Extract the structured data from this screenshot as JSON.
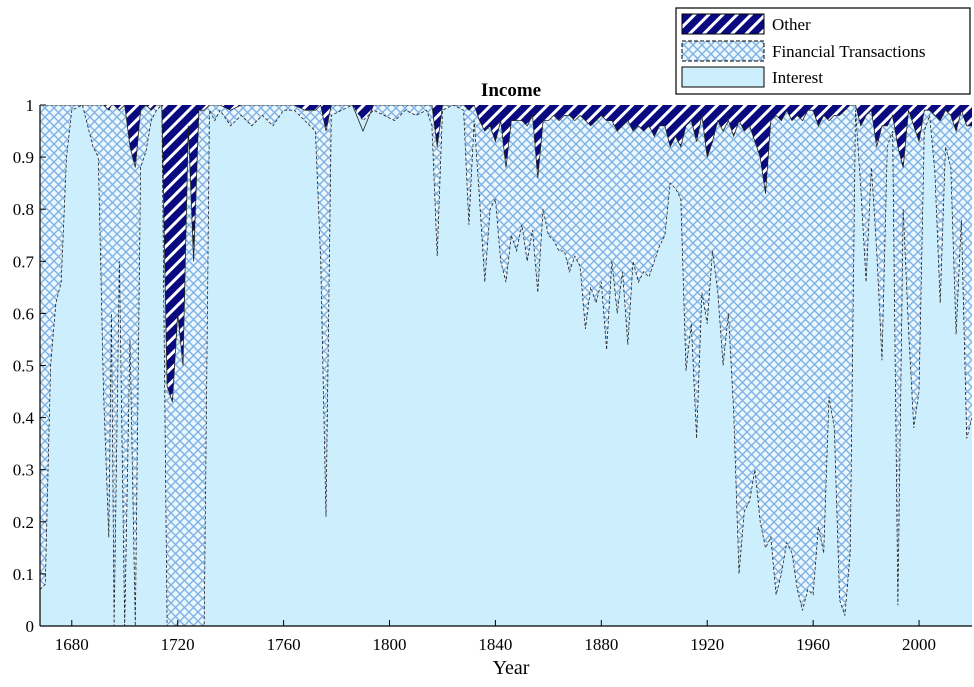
{
  "chart_data": {
    "type": "area",
    "stacked": true,
    "normalized": true,
    "title": "Income",
    "xlabel": "Year",
    "ylabel": "",
    "xlim": [
      1668,
      2020
    ],
    "ylim": [
      0,
      1
    ],
    "xticks": [
      1680,
      1720,
      1760,
      1800,
      1840,
      1880,
      1920,
      1960,
      2000
    ],
    "yticks": [
      0,
      0.1,
      0.2,
      0.3,
      0.4,
      0.5,
      0.6,
      0.7,
      0.8,
      0.9,
      1
    ],
    "ytick_labels": [
      "0",
      "0.1",
      "0.2",
      "0.3",
      "0.4",
      "0.5",
      "0.6",
      "0.7",
      "0.8",
      "0.9",
      "1"
    ],
    "xtick_labels": [
      "1680",
      "1720",
      "1760",
      "1800",
      "1840",
      "1880",
      "1920",
      "1960",
      "2000"
    ],
    "legend": {
      "position": "top-right"
    },
    "grid": false,
    "series": [
      {
        "name": "Interest",
        "pattern": "solid",
        "color": "#cdeefc"
      },
      {
        "name": "Financial Transactions",
        "pattern": "crosshatch",
        "color": "#9fc6ee"
      },
      {
        "name": "Other",
        "pattern": "diagonal-stripes",
        "color": "#0a0a80"
      }
    ],
    "interest_top": [
      [
        1668,
        0.07
      ],
      [
        1670,
        0.08
      ],
      [
        1672,
        0.5
      ],
      [
        1674,
        0.62
      ],
      [
        1676,
        0.66
      ],
      [
        1678,
        0.9
      ],
      [
        1680,
        0.99
      ],
      [
        1684,
        1.0
      ],
      [
        1688,
        0.92
      ],
      [
        1690,
        0.9
      ],
      [
        1692,
        0.45
      ],
      [
        1694,
        0.17
      ],
      [
        1695,
        0.6
      ],
      [
        1696,
        0.0
      ],
      [
        1698,
        0.7
      ],
      [
        1700,
        0.0
      ],
      [
        1702,
        0.55
      ],
      [
        1704,
        0.0
      ],
      [
        1706,
        0.88
      ],
      [
        1708,
        0.91
      ],
      [
        1710,
        0.97
      ],
      [
        1712,
        0.99
      ],
      [
        1714,
        1.0
      ],
      [
        1716,
        0.0
      ],
      [
        1718,
        0.0
      ],
      [
        1720,
        0.0
      ],
      [
        1722,
        0.0
      ],
      [
        1724,
        0.0
      ],
      [
        1726,
        0.0
      ],
      [
        1728,
        0.0
      ],
      [
        1730,
        0.0
      ],
      [
        1732,
        0.99
      ],
      [
        1734,
        0.97
      ],
      [
        1736,
        0.99
      ],
      [
        1740,
        0.96
      ],
      [
        1744,
        0.98
      ],
      [
        1748,
        0.96
      ],
      [
        1752,
        0.98
      ],
      [
        1756,
        0.96
      ],
      [
        1760,
        0.99
      ],
      [
        1764,
        0.99
      ],
      [
        1768,
        0.97
      ],
      [
        1772,
        0.95
      ],
      [
        1774,
        0.7
      ],
      [
        1776,
        0.21
      ],
      [
        1778,
        0.98
      ],
      [
        1782,
        0.99
      ],
      [
        1786,
        1.0
      ],
      [
        1790,
        0.97
      ],
      [
        1794,
        0.99
      ],
      [
        1798,
        0.98
      ],
      [
        1802,
        0.97
      ],
      [
        1806,
        0.99
      ],
      [
        1810,
        0.98
      ],
      [
        1814,
        0.99
      ],
      [
        1816,
        0.96
      ],
      [
        1818,
        0.71
      ],
      [
        1820,
        0.99
      ],
      [
        1824,
        1.0
      ],
      [
        1828,
        0.99
      ],
      [
        1830,
        0.77
      ],
      [
        1832,
        0.97
      ],
      [
        1834,
        0.82
      ],
      [
        1836,
        0.66
      ],
      [
        1838,
        0.8
      ],
      [
        1840,
        0.82
      ],
      [
        1842,
        0.7
      ],
      [
        1844,
        0.66
      ],
      [
        1846,
        0.75
      ],
      [
        1848,
        0.72
      ],
      [
        1850,
        0.77
      ],
      [
        1852,
        0.7
      ],
      [
        1854,
        0.76
      ],
      [
        1856,
        0.64
      ],
      [
        1858,
        0.8
      ],
      [
        1860,
        0.75
      ],
      [
        1862,
        0.74
      ],
      [
        1864,
        0.72
      ],
      [
        1866,
        0.72
      ],
      [
        1868,
        0.68
      ],
      [
        1870,
        0.71
      ],
      [
        1872,
        0.69
      ],
      [
        1874,
        0.57
      ],
      [
        1876,
        0.65
      ],
      [
        1878,
        0.62
      ],
      [
        1880,
        0.66
      ],
      [
        1882,
        0.53
      ],
      [
        1884,
        0.7
      ],
      [
        1886,
        0.6
      ],
      [
        1888,
        0.68
      ],
      [
        1890,
        0.54
      ],
      [
        1892,
        0.7
      ],
      [
        1894,
        0.66
      ],
      [
        1896,
        0.68
      ],
      [
        1898,
        0.67
      ],
      [
        1900,
        0.7
      ],
      [
        1902,
        0.73
      ],
      [
        1904,
        0.75
      ],
      [
        1906,
        0.85
      ],
      [
        1908,
        0.84
      ],
      [
        1910,
        0.82
      ],
      [
        1912,
        0.49
      ],
      [
        1914,
        0.58
      ],
      [
        1916,
        0.36
      ],
      [
        1918,
        0.64
      ],
      [
        1920,
        0.58
      ],
      [
        1922,
        0.72
      ],
      [
        1924,
        0.64
      ],
      [
        1926,
        0.5
      ],
      [
        1928,
        0.6
      ],
      [
        1930,
        0.41
      ],
      [
        1932,
        0.1
      ],
      [
        1934,
        0.22
      ],
      [
        1936,
        0.24
      ],
      [
        1938,
        0.3
      ],
      [
        1940,
        0.2
      ],
      [
        1942,
        0.15
      ],
      [
        1944,
        0.17
      ],
      [
        1946,
        0.06
      ],
      [
        1948,
        0.1
      ],
      [
        1950,
        0.16
      ],
      [
        1952,
        0.14
      ],
      [
        1954,
        0.07
      ],
      [
        1956,
        0.03
      ],
      [
        1958,
        0.07
      ],
      [
        1960,
        0.06
      ],
      [
        1962,
        0.19
      ],
      [
        1964,
        0.14
      ],
      [
        1966,
        0.44
      ],
      [
        1968,
        0.38
      ],
      [
        1970,
        0.05
      ],
      [
        1972,
        0.02
      ],
      [
        1974,
        0.14
      ],
      [
        1976,
        0.99
      ],
      [
        1978,
        0.84
      ],
      [
        1980,
        0.66
      ],
      [
        1982,
        0.88
      ],
      [
        1984,
        0.72
      ],
      [
        1986,
        0.51
      ],
      [
        1988,
        0.92
      ],
      [
        1990,
        0.95
      ],
      [
        1992,
        0.04
      ],
      [
        1994,
        0.8
      ],
      [
        1996,
        0.57
      ],
      [
        1998,
        0.38
      ],
      [
        2000,
        0.45
      ],
      [
        2002,
        0.95
      ],
      [
        2004,
        0.98
      ],
      [
        2006,
        0.87
      ],
      [
        2008,
        0.62
      ],
      [
        2010,
        0.92
      ],
      [
        2012,
        0.88
      ],
      [
        2014,
        0.56
      ],
      [
        2016,
        0.78
      ],
      [
        2018,
        0.36
      ],
      [
        2020,
        0.4
      ]
    ],
    "financial_top": [
      [
        1668,
        1.0
      ],
      [
        1670,
        1.0
      ],
      [
        1672,
        1.0
      ],
      [
        1674,
        1.0
      ],
      [
        1676,
        1.0
      ],
      [
        1678,
        1.0
      ],
      [
        1680,
        1.0
      ],
      [
        1684,
        1.0
      ],
      [
        1688,
        1.0
      ],
      [
        1690,
        1.0
      ],
      [
        1692,
        1.0
      ],
      [
        1694,
        0.99
      ],
      [
        1695,
        1.0
      ],
      [
        1696,
        1.0
      ],
      [
        1698,
        0.99
      ],
      [
        1700,
        1.0
      ],
      [
        1702,
        0.92
      ],
      [
        1704,
        0.88
      ],
      [
        1706,
        0.99
      ],
      [
        1708,
        1.0
      ],
      [
        1710,
        0.99
      ],
      [
        1712,
        1.0
      ],
      [
        1714,
        1.0
      ],
      [
        1716,
        0.46
      ],
      [
        1718,
        0.43
      ],
      [
        1720,
        0.6
      ],
      [
        1722,
        0.5
      ],
      [
        1724,
        0.96
      ],
      [
        1726,
        0.7
      ],
      [
        1728,
        0.99
      ],
      [
        1730,
        0.99
      ],
      [
        1732,
        1.0
      ],
      [
        1734,
        1.0
      ],
      [
        1736,
        1.0
      ],
      [
        1740,
        0.99
      ],
      [
        1744,
        1.0
      ],
      [
        1748,
        1.0
      ],
      [
        1752,
        1.0
      ],
      [
        1756,
        1.0
      ],
      [
        1760,
        1.0
      ],
      [
        1764,
        1.0
      ],
      [
        1768,
        0.99
      ],
      [
        1772,
        0.99
      ],
      [
        1774,
        1.0
      ],
      [
        1776,
        0.95
      ],
      [
        1778,
        1.0
      ],
      [
        1782,
        1.0
      ],
      [
        1786,
        1.0
      ],
      [
        1790,
        0.95
      ],
      [
        1794,
        1.0
      ],
      [
        1798,
        1.0
      ],
      [
        1802,
        1.0
      ],
      [
        1806,
        1.0
      ],
      [
        1810,
        1.0
      ],
      [
        1814,
        1.0
      ],
      [
        1816,
        1.0
      ],
      [
        1818,
        0.92
      ],
      [
        1820,
        1.0
      ],
      [
        1824,
        1.0
      ],
      [
        1828,
        1.0
      ],
      [
        1830,
        0.99
      ],
      [
        1832,
        1.0
      ],
      [
        1834,
        0.97
      ],
      [
        1836,
        0.95
      ],
      [
        1838,
        0.96
      ],
      [
        1840,
        0.93
      ],
      [
        1842,
        0.97
      ],
      [
        1844,
        0.88
      ],
      [
        1846,
        0.97
      ],
      [
        1848,
        0.97
      ],
      [
        1850,
        0.97
      ],
      [
        1852,
        0.96
      ],
      [
        1854,
        0.98
      ],
      [
        1856,
        0.86
      ],
      [
        1858,
        0.97
      ],
      [
        1860,
        0.97
      ],
      [
        1862,
        0.98
      ],
      [
        1864,
        0.97
      ],
      [
        1866,
        0.98
      ],
      [
        1868,
        0.98
      ],
      [
        1870,
        0.97
      ],
      [
        1872,
        0.98
      ],
      [
        1874,
        0.97
      ],
      [
        1876,
        0.96
      ],
      [
        1878,
        0.97
      ],
      [
        1880,
        0.98
      ],
      [
        1882,
        0.97
      ],
      [
        1884,
        0.97
      ],
      [
        1886,
        0.95
      ],
      [
        1888,
        0.96
      ],
      [
        1890,
        0.97
      ],
      [
        1892,
        0.95
      ],
      [
        1894,
        0.96
      ],
      [
        1896,
        0.95
      ],
      [
        1898,
        0.96
      ],
      [
        1900,
        0.94
      ],
      [
        1902,
        0.96
      ],
      [
        1904,
        0.96
      ],
      [
        1906,
        0.92
      ],
      [
        1908,
        0.94
      ],
      [
        1910,
        0.92
      ],
      [
        1912,
        0.96
      ],
      [
        1914,
        0.97
      ],
      [
        1916,
        0.93
      ],
      [
        1918,
        0.98
      ],
      [
        1920,
        0.9
      ],
      [
        1922,
        0.93
      ],
      [
        1924,
        0.97
      ],
      [
        1926,
        0.95
      ],
      [
        1928,
        0.97
      ],
      [
        1930,
        0.94
      ],
      [
        1932,
        0.97
      ],
      [
        1934,
        0.95
      ],
      [
        1936,
        0.96
      ],
      [
        1938,
        0.93
      ],
      [
        1940,
        0.9
      ],
      [
        1942,
        0.83
      ],
      [
        1944,
        0.97
      ],
      [
        1946,
        0.98
      ],
      [
        1948,
        0.97
      ],
      [
        1950,
        0.99
      ],
      [
        1952,
        0.97
      ],
      [
        1954,
        0.98
      ],
      [
        1956,
        0.97
      ],
      [
        1958,
        0.99
      ],
      [
        1960,
        0.99
      ],
      [
        1962,
        0.96
      ],
      [
        1964,
        0.98
      ],
      [
        1966,
        0.97
      ],
      [
        1968,
        0.98
      ],
      [
        1970,
        0.98
      ],
      [
        1972,
        0.99
      ],
      [
        1974,
        1.0
      ],
      [
        1976,
        1.0
      ],
      [
        1978,
        0.96
      ],
      [
        1980,
        0.98
      ],
      [
        1982,
        0.99
      ],
      [
        1984,
        0.92
      ],
      [
        1986,
        0.96
      ],
      [
        1988,
        0.96
      ],
      [
        1990,
        0.98
      ],
      [
        1992,
        0.92
      ],
      [
        1994,
        0.88
      ],
      [
        1996,
        0.99
      ],
      [
        1998,
        0.96
      ],
      [
        2000,
        0.93
      ],
      [
        2002,
        0.99
      ],
      [
        2004,
        0.99
      ],
      [
        2006,
        0.98
      ],
      [
        2008,
        0.97
      ],
      [
        2010,
        0.99
      ],
      [
        2012,
        0.98
      ],
      [
        2014,
        0.95
      ],
      [
        2016,
        0.99
      ],
      [
        2018,
        0.96
      ],
      [
        2020,
        0.96
      ]
    ]
  }
}
